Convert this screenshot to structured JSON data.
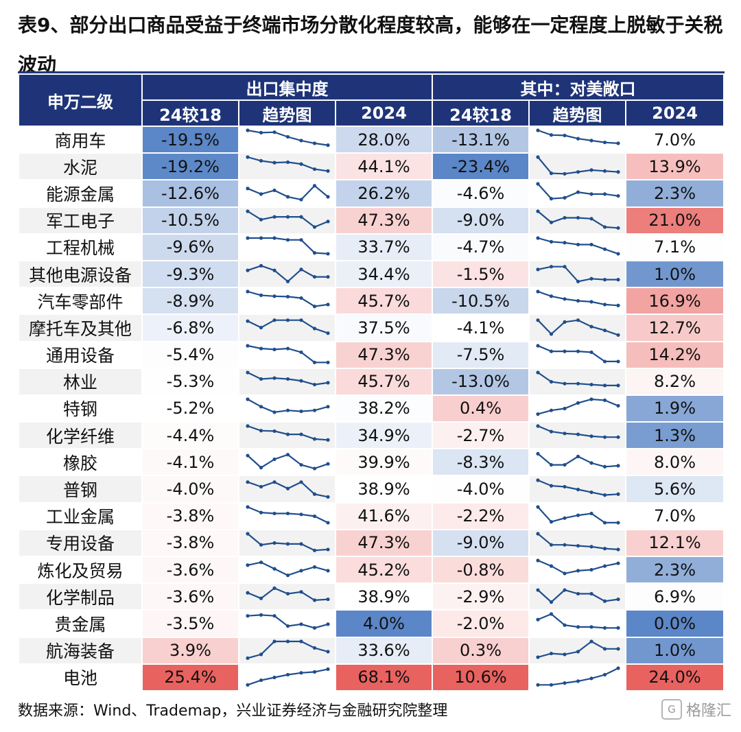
{
  "title": "表9、部分出口商品受益于终端市场分散化程度较高，能够在一定程度上脱敏于关税波动",
  "source": "数据来源：Wind、Trademap，兴业证券经济与金融研究院整理",
  "watermark": "格隆汇",
  "header": {
    "row_label": "申万二级",
    "group1": "出口集中度",
    "group2": "其中：对美敞口",
    "sub": [
      "24较18",
      "趋势图",
      "2024",
      "24较18",
      "趋势图",
      "2024"
    ]
  },
  "colors": {
    "header_bg": "#1f3478",
    "positive": "#e8625f",
    "negative": "#5b86c7",
    "line": "#1f4e8c"
  },
  "rows": [
    {
      "name": "商用车",
      "c1": "-19.5%",
      "v1": -19.5,
      "c2": "28.0%",
      "v2": 28.0,
      "c3": "-13.1%",
      "v3": -13.1,
      "c4": "7.0%",
      "v4": 7.0,
      "t1": [
        6,
        5.5,
        5.6,
        4.6,
        3.8,
        3.2,
        2.8
      ],
      "t2": [
        6,
        5.0,
        4.9,
        4.2,
        3.8,
        3.4,
        3.2
      ]
    },
    {
      "name": "水泥",
      "c1": "-19.2%",
      "v1": -19.2,
      "c2": "44.1%",
      "v2": 44.1,
      "c3": "-23.4%",
      "v3": -23.4,
      "c4": "13.9%",
      "v4": 13.9,
      "t1": [
        6,
        5.2,
        4.8,
        4.9,
        4.5,
        3.4,
        3.0
      ],
      "t2": [
        6,
        2.5,
        2.4,
        2.8,
        3.2,
        3.0,
        2.8
      ]
    },
    {
      "name": "能源金属",
      "c1": "-12.6%",
      "v1": -12.6,
      "c2": "26.2%",
      "v2": 26.2,
      "c3": "-4.6%",
      "v3": -4.6,
      "c4": "2.3%",
      "v4": 2.3,
      "t1": [
        5.0,
        3.8,
        4.6,
        3.2,
        2.6,
        5.6,
        3.2
      ],
      "t2": [
        6,
        2.8,
        3.0,
        4.2,
        3.8,
        3.8,
        3.4
      ]
    },
    {
      "name": "军工电子",
      "c1": "-10.5%",
      "v1": -10.5,
      "c2": "47.3%",
      "v2": 47.3,
      "c3": "-9.0%",
      "v3": -9.0,
      "c4": "21.0%",
      "v4": 21.0,
      "t1": [
        6,
        4.2,
        4.8,
        4.8,
        4.8,
        2.6,
        3.8
      ],
      "t2": [
        6,
        3.6,
        4.6,
        4.6,
        4.4,
        2.6,
        2.4
      ]
    },
    {
      "name": "工程机械",
      "c1": "-9.6%",
      "v1": -9.6,
      "c2": "33.7%",
      "v2": 33.7,
      "c3": "-4.7%",
      "v3": -4.7,
      "c4": "7.1%",
      "v4": 7.1,
      "t1": [
        6,
        6,
        6,
        5.6,
        5.6,
        2.8,
        2.6
      ],
      "t2": [
        6,
        5.2,
        5.0,
        4.6,
        4.6,
        3.6,
        2.6
      ]
    },
    {
      "name": "其他电源设备",
      "c1": "-9.3%",
      "v1": -9.3,
      "c2": "34.4%",
      "v2": 34.4,
      "c3": "-1.5%",
      "v3": -1.5,
      "c4": "1.0%",
      "v4": 1.0,
      "t1": [
        4.8,
        5.8,
        4.8,
        2.4,
        5.0,
        3.4,
        3.4
      ],
      "t2": [
        5.0,
        5.6,
        5.6,
        2.4,
        3.0,
        2.8,
        2.8
      ]
    },
    {
      "name": "汽车零部件",
      "c1": "-8.9%",
      "v1": -8.9,
      "c2": "45.7%",
      "v2": 45.7,
      "c3": "-10.5%",
      "v3": -10.5,
      "c4": "16.9%",
      "v4": 16.9,
      "t1": [
        6,
        5.2,
        5.0,
        4.9,
        4.6,
        2.8,
        3.2
      ],
      "t2": [
        6,
        5.0,
        4.4,
        4.0,
        3.8,
        3.2,
        3.0
      ]
    },
    {
      "name": "摩托车及其他",
      "c1": "-6.8%",
      "v1": -6.8,
      "c2": "37.5%",
      "v2": 37.5,
      "c3": "-4.1%",
      "v3": -4.1,
      "c4": "12.7%",
      "v4": 12.7,
      "t1": [
        5.4,
        4.0,
        5.6,
        5.6,
        5.6,
        3.8,
        2.8
      ],
      "t2": [
        5.6,
        2.6,
        5.2,
        5.6,
        4.2,
        3.4,
        2.4
      ]
    },
    {
      "name": "通用设备",
      "c1": "-5.4%",
      "v1": -5.4,
      "c2": "47.3%",
      "v2": 47.3,
      "c3": "-7.5%",
      "v3": -7.5,
      "c4": "14.2%",
      "v4": 14.2,
      "t1": [
        6,
        5.4,
        5.2,
        5.4,
        4.6,
        2.4,
        2.4
      ],
      "t2": [
        6,
        4.8,
        4.8,
        4.8,
        4.6,
        2.6,
        2.6
      ]
    },
    {
      "name": "林业",
      "c1": "-5.3%",
      "v1": -5.3,
      "c2": "45.7%",
      "v2": 45.7,
      "c3": "-13.0%",
      "v3": -13.0,
      "c4": "8.2%",
      "v4": 8.2,
      "t1": [
        6,
        4.6,
        4.8,
        4.6,
        4.2,
        3.4,
        3.8
      ],
      "t2": [
        6,
        4.0,
        3.6,
        3.6,
        3.4,
        3.2,
        3.2
      ]
    },
    {
      "name": "特钢",
      "c1": "-5.2%",
      "v1": -5.2,
      "c2": "38.2%",
      "v2": 38.2,
      "c3": "0.4%",
      "v3": 0.4,
      "c4": "1.9%",
      "v4": 1.9,
      "t1": [
        6,
        4.4,
        3.2,
        3.6,
        3.4,
        3.6,
        4.4
      ],
      "t2": [
        2.8,
        3.6,
        4.0,
        5.2,
        6.0,
        5.8,
        4.6
      ]
    },
    {
      "name": "化学纤维",
      "c1": "-4.4%",
      "v1": -4.4,
      "c2": "34.9%",
      "v2": 34.9,
      "c3": "-2.7%",
      "v3": -2.7,
      "c4": "1.3%",
      "v4": 1.3,
      "t1": [
        6,
        5.0,
        4.9,
        4.2,
        4.2,
        3.2,
        3.0
      ],
      "t2": [
        6,
        4.8,
        4.4,
        4.2,
        3.8,
        3.6,
        3.6
      ]
    },
    {
      "name": "橡胶",
      "c1": "-4.1%",
      "v1": -4.1,
      "c2": "39.9%",
      "v2": 39.9,
      "c3": "-8.3%",
      "v3": -8.3,
      "c4": "8.0%",
      "v4": 8.0,
      "t1": [
        5.4,
        2.8,
        4.6,
        5.6,
        3.4,
        2.6,
        3.6
      ],
      "t2": [
        5.8,
        3.4,
        3.4,
        5.2,
        3.8,
        3.0,
        3.2
      ]
    },
    {
      "name": "普钢",
      "c1": "-4.0%",
      "v1": -4.0,
      "c2": "38.9%",
      "v2": 38.9,
      "c3": "-4.0%",
      "v3": -4.0,
      "c4": "5.6%",
      "v4": 5.6,
      "t1": [
        5.6,
        4.6,
        5.6,
        4.2,
        5.6,
        3.0,
        2.4
      ],
      "t2": [
        6,
        4.8,
        4.6,
        4.0,
        3.4,
        2.8,
        3.0
      ]
    },
    {
      "name": "工业金属",
      "c1": "-3.8%",
      "v1": -3.8,
      "c2": "41.6%",
      "v2": 41.6,
      "c3": "-2.2%",
      "v3": -2.2,
      "c4": "7.0%",
      "v4": 7.0,
      "t1": [
        6,
        4.8,
        4.6,
        4.6,
        4.4,
        4.0,
        2.6
      ],
      "t2": [
        6,
        2.8,
        3.6,
        4.2,
        4.6,
        2.6,
        2.6
      ]
    },
    {
      "name": "专用设备",
      "c1": "-3.8%",
      "v1": -3.8,
      "c2": "47.3%",
      "v2": 47.3,
      "c3": "-9.0%",
      "v3": -9.0,
      "c4": "12.1%",
      "v4": 12.1,
      "t1": [
        6,
        3.6,
        4.0,
        3.8,
        3.8,
        2.4,
        2.6
      ],
      "t2": [
        6,
        3.6,
        3.6,
        3.4,
        3.2,
        2.8,
        2.6
      ]
    },
    {
      "name": "炼化及贸易",
      "c1": "-3.6%",
      "v1": -3.6,
      "c2": "45.2%",
      "v2": 45.2,
      "c3": "-0.8%",
      "v3": -0.8,
      "c4": "2.3%",
      "v4": 2.3,
      "t1": [
        5.0,
        5.6,
        4.2,
        2.8,
        3.8,
        4.6,
        3.8
      ],
      "t2": [
        6,
        4.8,
        3.2,
        3.8,
        4.0,
        4.8,
        5.4
      ]
    },
    {
      "name": "化学制品",
      "c1": "-3.6%",
      "v1": -3.6,
      "c2": "38.9%",
      "v2": 38.9,
      "c3": "-2.9%",
      "v3": -2.9,
      "c4": "6.9%",
      "v4": 6.9,
      "t1": [
        4.8,
        3.6,
        5.8,
        4.6,
        5.0,
        3.2,
        3.4
      ],
      "t2": [
        5.4,
        2.8,
        5.4,
        4.6,
        4.6,
        3.0,
        3.4
      ]
    },
    {
      "name": "贵金属",
      "c1": "-3.5%",
      "v1": -3.5,
      "c2": "4.0%",
      "v2": 4.0,
      "c3": "-2.0%",
      "v3": -2.0,
      "c4": "0.0%",
      "v4": 0.0,
      "t1": [
        5.6,
        5.8,
        5.6,
        3.4,
        3.8,
        3.0,
        3.8
      ],
      "t2": [
        4.8,
        6.0,
        3.6,
        3.2,
        3.2,
        3.0,
        3.0
      ]
    },
    {
      "name": "航海装备",
      "c1": "3.9%",
      "v1": 3.9,
      "c2": "33.6%",
      "v2": 33.6,
      "c3": "0.3%",
      "v3": 0.3,
      "c4": "1.0%",
      "v4": 1.0,
      "t1": [
        2.4,
        3.2,
        6.0,
        6.0,
        6.0,
        4.6,
        3.8
      ],
      "t2": [
        2.6,
        3.4,
        3.2,
        3.8,
        6.0,
        4.4,
        4.4
      ]
    },
    {
      "name": "电池",
      "c1": "25.4%",
      "v1": 25.4,
      "c2": "68.1%",
      "v2": 68.1,
      "c3": "10.6%",
      "v3": 10.6,
      "c4": "24.0%",
      "v4": 24.0,
      "t1": [
        2.4,
        3.4,
        4.0,
        4.6,
        5.0,
        5.2,
        5.8
      ],
      "t2": [
        2.4,
        2.4,
        2.8,
        3.2,
        3.8,
        4.6,
        6.0
      ]
    }
  ]
}
